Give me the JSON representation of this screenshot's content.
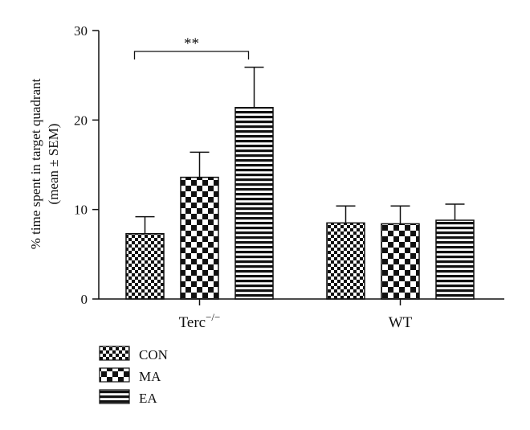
{
  "chart_data": {
    "type": "bar",
    "categories": [
      "Terc−/−",
      "WT"
    ],
    "category_parts": [
      {
        "base": "Terc",
        "sup": "−/−"
      },
      {
        "base": "WT",
        "sup": ""
      }
    ],
    "series": [
      {
        "name": "CON",
        "values": [
          7.3,
          8.5
        ],
        "errors": [
          1.9,
          1.9
        ],
        "pattern": "fine-checker"
      },
      {
        "name": "MA",
        "values": [
          13.6,
          8.4
        ],
        "errors": [
          2.8,
          2.0
        ],
        "pattern": "coarse-checker"
      },
      {
        "name": "EA",
        "values": [
          21.4,
          8.8
        ],
        "errors": [
          4.5,
          1.8
        ],
        "pattern": "horizontal-lines"
      }
    ],
    "title": "",
    "xlabel": "",
    "ylabel_line1": "% time spent in target quadrant",
    "ylabel_line2": "(mean ± SEM)",
    "ylim": [
      0,
      30
    ],
    "yticks": [
      0,
      10,
      20,
      30
    ],
    "grid": false,
    "legend_position": "bottom-left",
    "annotations": [
      {
        "text": "**",
        "category_index": 0,
        "from_series": 0,
        "to_series": 2
      }
    ],
    "colors": {
      "bar_fill": "#111111",
      "pattern_light": "#ffffff",
      "axis": "#111111"
    }
  }
}
